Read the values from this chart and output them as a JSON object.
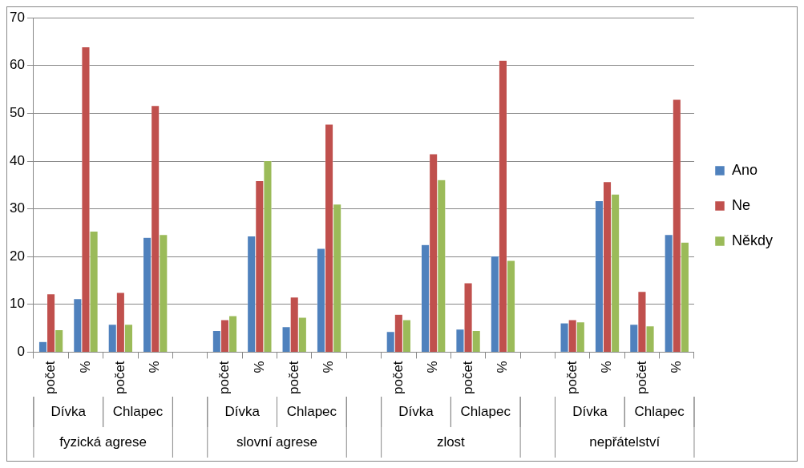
{
  "chart_data": {
    "type": "bar",
    "categories": [
      "počet",
      "%",
      "počet",
      "%",
      null,
      "počet",
      "%",
      "počet",
      "%",
      null,
      "počet",
      "%",
      "počet",
      "%",
      null,
      "počet",
      "%",
      "počet",
      "%"
    ],
    "series": [
      {
        "name": "Ano",
        "color": "#4f81bd",
        "values": [
          2.2,
          11.2,
          5.8,
          24,
          null,
          4.5,
          24.3,
          5.3,
          21.7,
          null,
          4.3,
          22.5,
          4.8,
          20.1,
          null,
          6.1,
          31.7,
          5.8,
          24.6
        ]
      },
      {
        "name": "Ne",
        "color": "#c0504d",
        "values": [
          12.2,
          63.9,
          12.5,
          51.6,
          null,
          6.8,
          35.9,
          11.5,
          47.7,
          null,
          7.9,
          41.5,
          14.5,
          61.1,
          null,
          6.8,
          35.7,
          12.7,
          52.9
        ]
      },
      {
        "name": "Někdy",
        "color": "#9bbb59",
        "values": [
          4.7,
          25.3,
          5.8,
          24.6,
          null,
          7.6,
          40.1,
          7.3,
          31,
          null,
          6.8,
          36.1,
          4.5,
          19.2,
          null,
          6.3,
          33.1,
          5.5,
          23
        ]
      }
    ],
    "annotations": [
      "Dívka",
      "Chlapec",
      "fyzická agrese",
      "Dívka",
      "Chlapec",
      "slovní agrese",
      "Dívka",
      "Chlapec",
      "zlost",
      "Dívka",
      "Chlapec",
      "nepřátelství"
    ],
    "ylim": [
      0,
      70
    ],
    "yticks": [
      0,
      10,
      20,
      30,
      40,
      50,
      60,
      70
    ],
    "grid": "y",
    "legend": "right"
  }
}
